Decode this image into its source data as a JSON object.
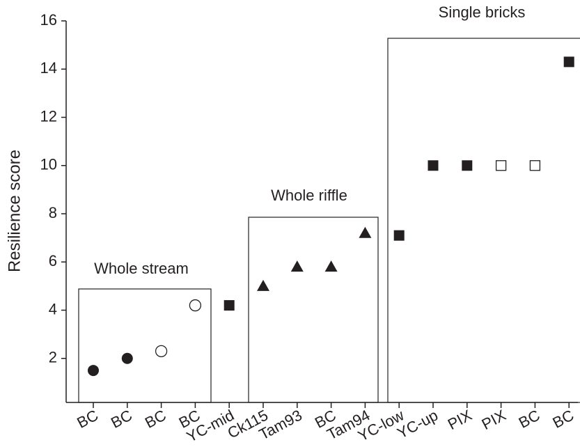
{
  "chart_data": {
    "type": "scatter",
    "y_label": "Resilience score",
    "annotations": [
      "Whole stream",
      "Whole riffle",
      "Single bricks"
    ],
    "categories": [
      "BC",
      "BC",
      "BC",
      "BC",
      "YC-mid",
      "Ck115",
      "Tam93",
      "BC",
      "Tam94",
      "YC-low",
      "YC-up",
      "PIX",
      "PIX",
      "BC",
      "BC"
    ],
    "values": [
      1.5,
      2.0,
      2.3,
      4.2,
      4.2,
      5.0,
      5.8,
      5.8,
      7.2,
      7.1,
      10.0,
      10.0,
      10.0,
      10.0,
      14.3
    ],
    "markers": [
      "filled-circle",
      "filled-circle",
      "open-circle",
      "open-circle",
      "filled-square",
      "filled-triangle",
      "filled-triangle",
      "filled-triangle",
      "filled-triangle",
      "filled-square",
      "filled-square",
      "filled-square",
      "open-square",
      "open-square",
      "filled-square"
    ],
    "color": "#231f20",
    "ylim": [
      0,
      16
    ],
    "yticks": [
      2,
      4,
      6,
      8,
      10,
      12,
      14,
      16
    ]
  }
}
